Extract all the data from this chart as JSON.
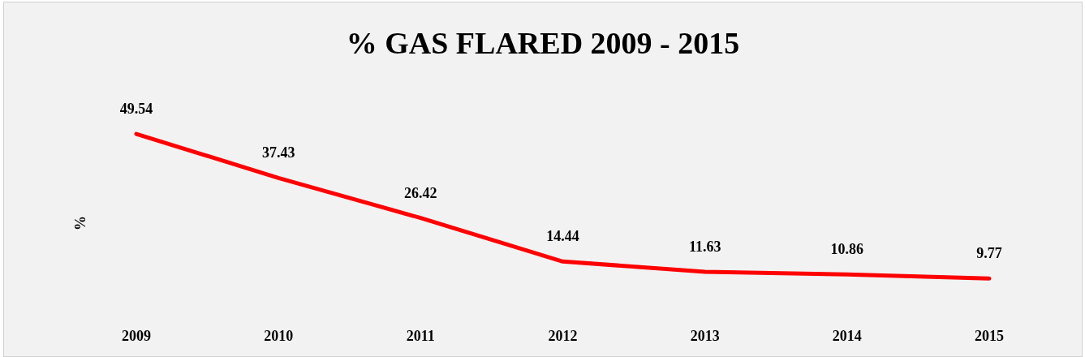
{
  "chart_data": {
    "type": "line",
    "title": "% GAS FLARED 2009 - 2015",
    "ylabel": "%",
    "categories": [
      "2009",
      "2010",
      "2011",
      "2012",
      "2013",
      "2014",
      "2015"
    ],
    "series": [
      {
        "color": "#ff0000",
        "values": [
          49.54,
          37.43,
          26.42,
          14.44,
          11.63,
          10.86,
          9.77
        ]
      }
    ],
    "data_labels": true,
    "marker": "none",
    "line_style": "solid",
    "tick_labels": "x"
  }
}
